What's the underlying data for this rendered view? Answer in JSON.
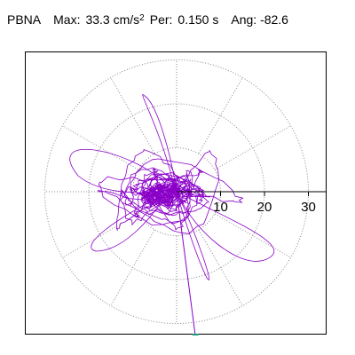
{
  "header": {
    "station": "PBNA",
    "max_label": "Max:",
    "max_value": "33.3",
    "max_unit": "cm/s",
    "max_unit_exp": "2",
    "per_label": "Per:",
    "per_value": "0.150 s",
    "ang_label": "Ang:",
    "ang_value": "-82.6"
  },
  "chart_data": {
    "type": "scatter",
    "title": "",
    "description_of_marks": "polar particle-motion hodogram (orbit trace) with dotted circular range rings",
    "radial_ticks": [
      "10",
      "20",
      "30"
    ],
    "radial_tick_values": [
      10,
      20,
      30
    ],
    "rings": [
      10,
      20,
      30
    ],
    "spokes_deg": [
      0,
      30,
      60,
      90,
      120,
      150,
      180,
      210,
      240,
      270,
      300,
      330
    ],
    "rlim": [
      0,
      35
    ],
    "max_amplitude": 33.3,
    "max_angle_deg": -82.6,
    "grid": true,
    "colors": {
      "trace": "#8a00c8",
      "marker": "#1a9a7a",
      "grid": "#888888",
      "frame": "#000000"
    }
  }
}
